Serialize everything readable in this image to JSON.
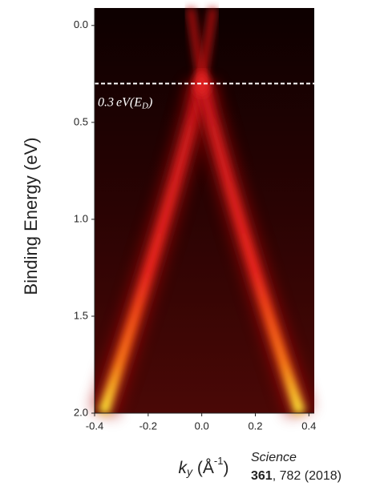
{
  "chart_data": {
    "type": "heatmap",
    "ylabel": "Binding Energy (eV)",
    "xlabel_parts": [
      "k",
      "y",
      " (Å",
      "-1",
      ")"
    ],
    "xlim": [
      -0.4,
      0.42
    ],
    "ylim": [
      2.0,
      -0.09
    ],
    "xticks": [
      -0.4,
      -0.2,
      {
        "value": 0,
        "label": "0.0"
      },
      0.2,
      0.4
    ],
    "yticks": [
      {
        "value": 0,
        "label": "0.0"
      },
      0.5,
      {
        "value": 1,
        "label": "1.0"
      },
      1.5,
      {
        "value": 2,
        "label": "2.0"
      }
    ],
    "reference_line": {
      "value": 0.3,
      "label_parts": [
        "eV(E",
        "D",
        ")"
      ],
      "color": "#ffffff"
    },
    "citation": {
      "journal": "Science",
      "volume": "361",
      "rest": ", 782 (2018)"
    }
  }
}
